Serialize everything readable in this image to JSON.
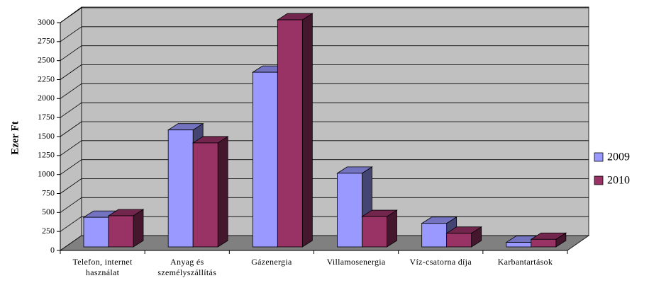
{
  "chart_data": {
    "type": "bar3d",
    "y_label": "Ezer Ft",
    "categories": [
      "Telefon, internet használat",
      "Anyag és személyszállítás",
      "Gázenergia",
      "Villamosenergia",
      "Víz-csatorna díja",
      "Karbantartások"
    ],
    "series": [
      {
        "name": "2009",
        "color": "#9999ff",
        "values": [
          390,
          1540,
          2300,
          970,
          310,
          60
        ]
      },
      {
        "name": "2010",
        "color": "#993366",
        "values": [
          410,
          1370,
          2990,
          400,
          180,
          100
        ]
      }
    ],
    "ylim": [
      0,
      3000
    ],
    "yticks": [
      0,
      250,
      500,
      750,
      1000,
      1250,
      1500,
      1750,
      2000,
      2250,
      2500,
      2750,
      3000
    ],
    "grid": true,
    "legend": "right"
  }
}
